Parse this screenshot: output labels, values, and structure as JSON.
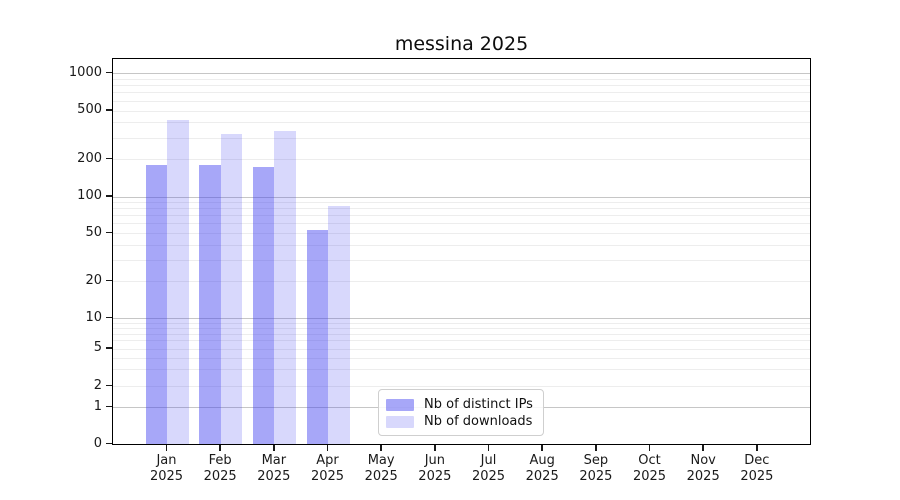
{
  "title": "messina 2025",
  "legend": {
    "items": [
      {
        "label": "Nb of distinct IPs",
        "color": "rgba(60,60,240,0.45)"
      },
      {
        "label": "Nb of downloads",
        "color": "rgba(60,60,240,0.2)"
      }
    ]
  },
  "x_axis": {
    "months": [
      "Jan",
      "Feb",
      "Mar",
      "Apr",
      "May",
      "Jun",
      "Jul",
      "Aug",
      "Sep",
      "Oct",
      "Nov",
      "Dec"
    ],
    "year": "2025"
  },
  "y_axis": {
    "tick_values": [
      0,
      1,
      2,
      5,
      10,
      20,
      50,
      100,
      200,
      500,
      1000
    ],
    "major_grid_values": [
      1,
      10,
      100,
      1000
    ],
    "minor_grid_values": [
      2,
      3,
      4,
      5,
      6,
      7,
      8,
      9,
      20,
      30,
      40,
      50,
      60,
      70,
      80,
      90,
      200,
      300,
      400,
      500,
      600,
      700,
      800,
      900
    ]
  },
  "chart_data": {
    "type": "bar",
    "title": "messina 2025",
    "categories": [
      "Jan 2025",
      "Feb 2025",
      "Mar 2025",
      "Apr 2025",
      "May 2025",
      "Jun 2025",
      "Jul 2025",
      "Aug 2025",
      "Sep 2025",
      "Oct 2025",
      "Nov 2025",
      "Dec 2025"
    ],
    "series": [
      {
        "name": "Nb of distinct IPs",
        "color": "rgba(60,60,240,0.45)",
        "values": [
          180,
          180,
          175,
          53,
          0,
          0,
          0,
          0,
          0,
          0,
          0,
          0
        ]
      },
      {
        "name": "Nb of downloads",
        "color": "rgba(60,60,240,0.2)",
        "values": [
          420,
          325,
          340,
          85,
          0,
          0,
          0,
          0,
          0,
          0,
          0,
          0
        ]
      }
    ],
    "xlabel": "",
    "ylabel": "",
    "yscale": "symlog-like",
    "yticks": [
      0,
      1,
      2,
      5,
      10,
      20,
      50,
      100,
      200,
      500,
      1000
    ],
    "ylim": [
      0,
      1400
    ],
    "grid": true,
    "legend_position": "lower center-right inside"
  },
  "colors": {
    "bar_dark": "rgba(60,60,240,0.45)",
    "bar_light": "rgba(60,60,240,0.2)",
    "grid_major": "#c6c6c6",
    "grid_minor": "#ededed",
    "spine": "#000000"
  }
}
